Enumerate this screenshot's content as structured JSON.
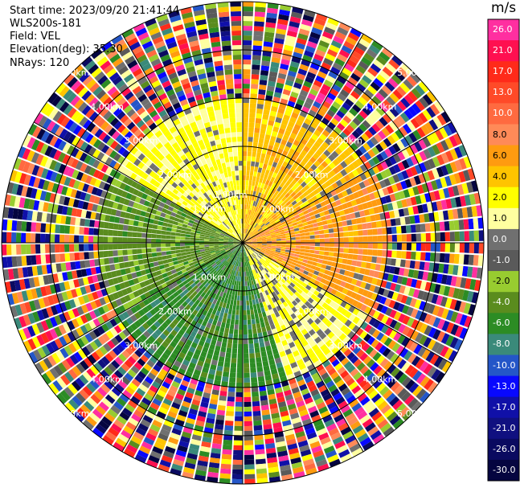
{
  "header": {
    "start_time": "Start time: 2023/09/20 21:41:44",
    "instrument": "WLS200s-181",
    "field": "Field: VEL",
    "elevation": "Elevation(deg): 35.30",
    "nrays": "NRays: 120"
  },
  "colorbar": {
    "unit": "m/s",
    "labels": [
      "26.0",
      "21.0",
      "17.0",
      "13.0",
      "10.0",
      "8.0",
      "6.0",
      "4.0",
      "2.0",
      "1.0",
      "0.0",
      "-1.0",
      "-2.0",
      "-4.0",
      "-6.0",
      "-8.0",
      "-10.0",
      "-13.0",
      "-17.0",
      "-21.0",
      "-26.0",
      "-30.0"
    ],
    "colors": [
      "#ff2fa0",
      "#ff1050",
      "#ff2a1a",
      "#ff4a28",
      "#ff6a40",
      "#ff8a58",
      "#ff9b10",
      "#ffc400",
      "#ffff00",
      "#ffffa0",
      "#707070",
      "#5a5a5a",
      "#98cc30",
      "#5a8c1e",
      "#2c8c24",
      "#3a8a7a",
      "#2456c8",
      "#0808ff",
      "#1010a8",
      "#101080",
      "#0a0a60",
      "#050540"
    ]
  },
  "chart_data": {
    "type": "heatmap",
    "subtype": "polar PPI",
    "field": "VEL",
    "unit": "m/s",
    "nrays": 120,
    "range_ring_labels": [
      "1.00km",
      "2.00km",
      "3.00km",
      "4.00km",
      "5.00km"
    ],
    "ring_ranges_km": [
      1,
      2,
      3,
      4,
      5
    ],
    "max_range_km": 5.0,
    "spoke_azimuths_deg": [
      0,
      30,
      60,
      90,
      120,
      150,
      180,
      210,
      240,
      270,
      300,
      330
    ],
    "value_ranges": [
      30.0,
      26.0,
      21.0,
      17.0,
      13.0,
      10.0,
      8.0,
      6.0,
      4.0,
      2.0,
      1.0,
      0.0,
      -1.0,
      -2.0,
      -4.0,
      -6.0,
      -8.0,
      -10.0,
      -13.0,
      -17.0,
      -21.0,
      -26.0,
      -30.0
    ],
    "sectors": [
      {
        "azimuth_deg": [
          300,
          360
        ],
        "range_km": [
          0,
          3
        ],
        "value_ms": 2.5
      },
      {
        "azimuth_deg": [
          0,
          60
        ],
        "range_km": [
          0,
          3
        ],
        "value_ms": 5
      },
      {
        "azimuth_deg": [
          60,
          120
        ],
        "range_km": [
          0,
          3
        ],
        "value_ms": 7
      },
      {
        "azimuth_deg": [
          120,
          160
        ],
        "range_km": [
          0,
          3
        ],
        "value_ms": 2
      },
      {
        "azimuth_deg": [
          160,
          240
        ],
        "range_km": [
          0,
          3
        ],
        "value_ms": -5
      },
      {
        "azimuth_deg": [
          240,
          300
        ],
        "range_km": [
          0,
          3
        ],
        "value_ms": -3
      },
      {
        "azimuth_deg": [
          0,
          360
        ],
        "range_km": [
          3,
          5
        ],
        "value_ms": "noise"
      }
    ]
  }
}
